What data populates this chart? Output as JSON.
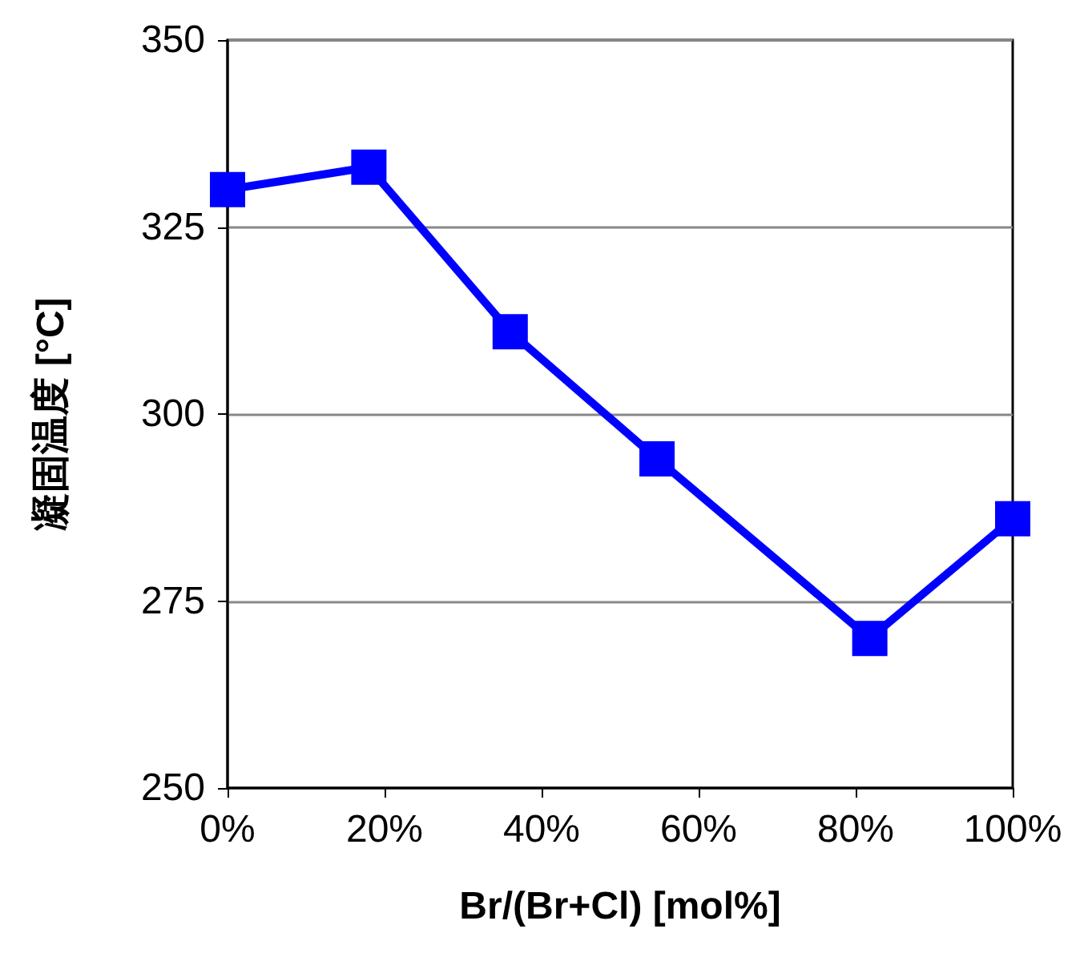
{
  "chart_data": {
    "type": "line",
    "xlabel": "Br/(Br+Cl) [mol%]",
    "ylabel": "凝固温度 [°C]",
    "x": [
      0,
      18,
      36,
      54.7,
      81.8,
      100
    ],
    "series": [
      {
        "color": "#0000ff",
        "values": [
          330,
          333,
          311,
          294,
          270,
          286
        ]
      }
    ],
    "xlim": [
      0,
      100
    ],
    "xticks": [
      {
        "value": 0,
        "label": "0%"
      },
      {
        "value": 20,
        "label": "20%"
      },
      {
        "value": 40,
        "label": "40%"
      },
      {
        "value": 60,
        "label": "60%"
      },
      {
        "value": 80,
        "label": "80%"
      },
      {
        "value": 100,
        "label": "100%"
      }
    ],
    "ylim": [
      250,
      350
    ],
    "yticks": [
      250,
      275,
      300,
      325,
      350
    ],
    "grid": "y",
    "marker": "square",
    "line_style": "solid"
  }
}
